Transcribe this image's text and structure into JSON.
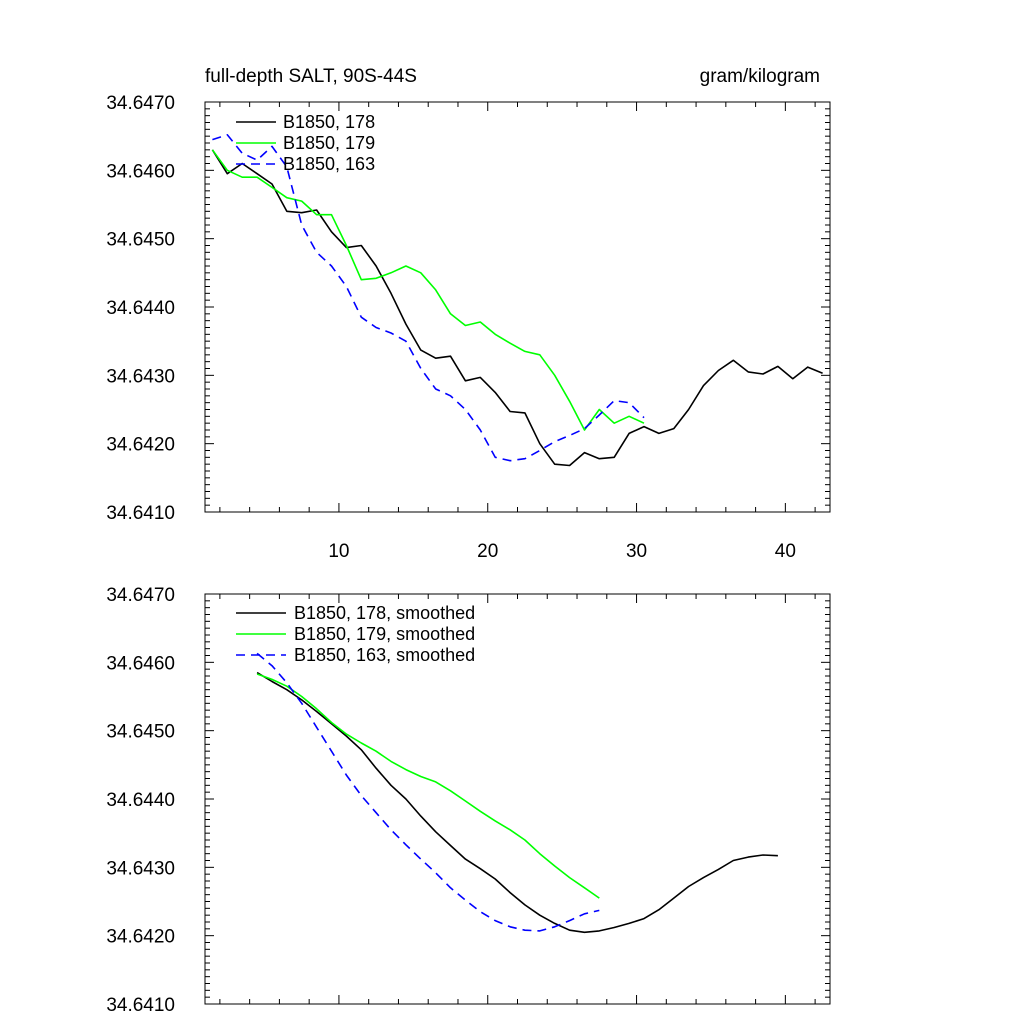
{
  "chart_data": [
    {
      "type": "line",
      "title_left": "full-depth SALT, 90S-44S",
      "title_right": "gram/kilogram",
      "xlim": [
        1,
        43
      ],
      "ylim": [
        34.641,
        34.647
      ],
      "x_ticks": [
        10,
        20,
        30,
        40
      ],
      "x_tick_labels": [
        "10",
        "20",
        "30",
        "40"
      ],
      "y_ticks": [
        34.641,
        34.642,
        34.643,
        34.644,
        34.645,
        34.646,
        34.647
      ],
      "y_tick_labels": [
        "34.6410",
        "34.6420",
        "34.6430",
        "34.6440",
        "34.6450",
        "34.6460",
        "34.6470"
      ],
      "legend_position": "top-left",
      "series": [
        {
          "name": "B1850, 178",
          "color": "#000000",
          "dash": "solid",
          "x": [
            1.5,
            2.5,
            3.5,
            4.5,
            5.5,
            6.5,
            7.5,
            8.5,
            9.5,
            10.5,
            11.5,
            12.5,
            13.5,
            14.5,
            15.5,
            16.5,
            17.5,
            18.5,
            19.5,
            20.5,
            21.5,
            22.5,
            23.5,
            24.5,
            25.5,
            26.5,
            27.5,
            28.5,
            29.5,
            30.5,
            31.5,
            32.5,
            33.5,
            34.5,
            35.5,
            36.5,
            37.5,
            38.5,
            39.5,
            40.5,
            41.5,
            42.5
          ],
          "y": [
            34.6463,
            34.64595,
            34.6461,
            34.64595,
            34.6458,
            34.6454,
            34.64538,
            34.64542,
            34.6451,
            34.64487,
            34.6449,
            34.6446,
            34.6442,
            34.64375,
            34.64337,
            34.64325,
            34.64328,
            34.64292,
            34.64297,
            34.64275,
            34.64247,
            34.64245,
            34.642,
            34.6417,
            34.64168,
            34.64187,
            34.64178,
            34.6418,
            34.64215,
            34.64225,
            34.64215,
            34.64222,
            34.6425,
            34.64285,
            34.64307,
            34.64322,
            34.64305,
            34.64302,
            34.64313,
            34.64295,
            34.64312,
            34.64303
          ]
        },
        {
          "name": "B1850, 179",
          "color": "#00ff00",
          "dash": "solid",
          "x": [
            1.5,
            2.5,
            3.5,
            4.5,
            5.5,
            6.5,
            7.5,
            8.5,
            9.5,
            10.5,
            11.5,
            12.5,
            13.5,
            14.5,
            15.5,
            16.5,
            17.5,
            18.5,
            19.5,
            20.5,
            21.5,
            22.5,
            23.5,
            24.5,
            25.5,
            26.5,
            27.5,
            28.5,
            29.5,
            30.5
          ],
          "y": [
            34.6463,
            34.646,
            34.6459,
            34.6459,
            34.64575,
            34.6456,
            34.64555,
            34.64535,
            34.64535,
            34.6449,
            34.6444,
            34.64442,
            34.6445,
            34.6446,
            34.6445,
            34.64425,
            34.6439,
            34.64373,
            34.64378,
            34.6436,
            34.64347,
            34.64335,
            34.6433,
            34.643,
            34.64262,
            34.6422,
            34.6425,
            34.6423,
            34.6424,
            34.6423
          ]
        },
        {
          "name": "B1850, 163",
          "color": "#0000ff",
          "dash": "dashed",
          "x": [
            1.5,
            2.5,
            3.5,
            4.5,
            5.5,
            6.5,
            7.5,
            8.5,
            9.5,
            10.5,
            11.5,
            12.5,
            13.5,
            14.5,
            15.5,
            16.5,
            17.5,
            18.5,
            19.5,
            20.5,
            21.5,
            22.5,
            23.5,
            24.5,
            25.5,
            26.5,
            27.5,
            28.5,
            29.5,
            30.5
          ],
          "y": [
            34.64645,
            34.64652,
            34.64625,
            34.64615,
            34.64635,
            34.64605,
            34.6452,
            34.6448,
            34.6446,
            34.6443,
            34.64385,
            34.6437,
            34.64362,
            34.6435,
            34.6431,
            34.6428,
            34.6427,
            34.6425,
            34.6422,
            34.6418,
            34.64175,
            34.64178,
            34.6419,
            34.64203,
            34.64212,
            34.64222,
            34.64242,
            34.64263,
            34.6426,
            34.64238
          ]
        }
      ]
    },
    {
      "type": "line",
      "xlim": [
        1,
        43
      ],
      "ylim": [
        34.641,
        34.647
      ],
      "x_ticks": [
        10,
        20,
        30,
        40
      ],
      "y_ticks": [
        34.641,
        34.642,
        34.643,
        34.644,
        34.645,
        34.646,
        34.647
      ],
      "y_tick_labels": [
        "34.6410",
        "34.6420",
        "34.6430",
        "34.6440",
        "34.6450",
        "34.6460",
        "34.6470"
      ],
      "legend_position": "top-left",
      "series": [
        {
          "name": "B1850, 178, smoothed",
          "color": "#000000",
          "dash": "solid",
          "x": [
            4.5,
            5.5,
            6.5,
            7.5,
            8.5,
            9.5,
            10.5,
            11.5,
            12.5,
            13.5,
            14.5,
            15.5,
            16.5,
            17.5,
            18.5,
            19.5,
            20.5,
            21.5,
            22.5,
            23.5,
            24.5,
            25.5,
            26.5,
            27.5,
            28.5,
            29.5,
            30.5,
            31.5,
            32.5,
            33.5,
            34.5,
            35.5,
            36.5,
            37.5,
            38.5,
            39.5
          ],
          "y": [
            34.64585,
            34.64572,
            34.6456,
            34.64545,
            34.64528,
            34.6451,
            34.64492,
            34.64472,
            34.64445,
            34.6442,
            34.644,
            34.64375,
            34.64352,
            34.64332,
            34.64312,
            34.64298,
            34.64283,
            34.64263,
            34.64245,
            34.6423,
            34.64218,
            34.64208,
            34.64205,
            34.64207,
            34.64212,
            34.64218,
            34.64225,
            34.64238,
            34.64255,
            34.64272,
            34.64285,
            34.64297,
            34.6431,
            34.64315,
            34.64318,
            34.64317
          ]
        },
        {
          "name": "B1850, 179, smoothed",
          "color": "#00ff00",
          "dash": "solid",
          "x": [
            4.5,
            5.5,
            6.5,
            7.5,
            8.5,
            9.5,
            10.5,
            11.5,
            12.5,
            13.5,
            14.5,
            15.5,
            16.5,
            17.5,
            18.5,
            19.5,
            20.5,
            21.5,
            22.5,
            23.5,
            24.5,
            25.5,
            26.5,
            27.5
          ],
          "y": [
            34.64583,
            34.64575,
            34.64565,
            34.6455,
            34.64532,
            34.64512,
            34.64495,
            34.64482,
            34.6447,
            34.64455,
            34.64443,
            34.64433,
            34.64425,
            34.64412,
            34.64397,
            34.64382,
            34.64368,
            34.64355,
            34.6434,
            34.6432,
            34.64302,
            34.64285,
            34.6427,
            34.64255
          ]
        },
        {
          "name": "B1850, 163, smoothed",
          "color": "#0000ff",
          "dash": "dashed",
          "x": [
            4.5,
            5.5,
            6.5,
            7.5,
            8.5,
            9.5,
            10.5,
            11.5,
            12.5,
            13.5,
            14.5,
            15.5,
            16.5,
            17.5,
            18.5,
            19.5,
            20.5,
            21.5,
            22.5,
            23.5,
            24.5,
            25.5,
            26.5,
            27.5
          ],
          "y": [
            34.64613,
            34.64595,
            34.6457,
            34.6454,
            34.64505,
            34.6447,
            34.64435,
            34.64405,
            34.6438,
            34.64355,
            34.64333,
            34.64312,
            34.64292,
            34.6427,
            34.64252,
            34.64235,
            34.64222,
            34.64213,
            34.64208,
            34.64207,
            34.64213,
            34.64222,
            34.64232,
            34.64237
          ]
        }
      ]
    }
  ]
}
